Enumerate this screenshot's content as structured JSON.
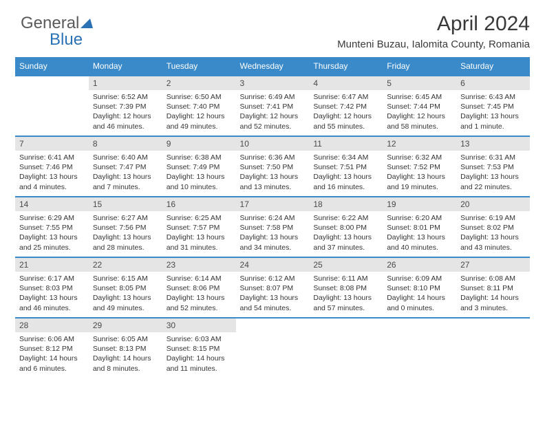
{
  "brand": {
    "part1": "General",
    "part2": "Blue"
  },
  "title": "April 2024",
  "subtitle": "Munteni Buzau, Ialomita County, Romania",
  "colors": {
    "header_bg": "#3a8ac9",
    "header_text": "#ffffff",
    "daynum_bg": "#e5e5e5",
    "accent": "#2a72b5",
    "text": "#333333"
  },
  "weekdays": [
    "Sunday",
    "Monday",
    "Tuesday",
    "Wednesday",
    "Thursday",
    "Friday",
    "Saturday"
  ],
  "weeks": [
    [
      {
        "n": "",
        "lines": [
          "",
          "",
          ""
        ]
      },
      {
        "n": "1",
        "lines": [
          "Sunrise: 6:52 AM",
          "Sunset: 7:39 PM",
          "Daylight: 12 hours and 46 minutes."
        ]
      },
      {
        "n": "2",
        "lines": [
          "Sunrise: 6:50 AM",
          "Sunset: 7:40 PM",
          "Daylight: 12 hours and 49 minutes."
        ]
      },
      {
        "n": "3",
        "lines": [
          "Sunrise: 6:49 AM",
          "Sunset: 7:41 PM",
          "Daylight: 12 hours and 52 minutes."
        ]
      },
      {
        "n": "4",
        "lines": [
          "Sunrise: 6:47 AM",
          "Sunset: 7:42 PM",
          "Daylight: 12 hours and 55 minutes."
        ]
      },
      {
        "n": "5",
        "lines": [
          "Sunrise: 6:45 AM",
          "Sunset: 7:44 PM",
          "Daylight: 12 hours and 58 minutes."
        ]
      },
      {
        "n": "6",
        "lines": [
          "Sunrise: 6:43 AM",
          "Sunset: 7:45 PM",
          "Daylight: 13 hours and 1 minute."
        ]
      }
    ],
    [
      {
        "n": "7",
        "lines": [
          "Sunrise: 6:41 AM",
          "Sunset: 7:46 PM",
          "Daylight: 13 hours and 4 minutes."
        ]
      },
      {
        "n": "8",
        "lines": [
          "Sunrise: 6:40 AM",
          "Sunset: 7:47 PM",
          "Daylight: 13 hours and 7 minutes."
        ]
      },
      {
        "n": "9",
        "lines": [
          "Sunrise: 6:38 AM",
          "Sunset: 7:49 PM",
          "Daylight: 13 hours and 10 minutes."
        ]
      },
      {
        "n": "10",
        "lines": [
          "Sunrise: 6:36 AM",
          "Sunset: 7:50 PM",
          "Daylight: 13 hours and 13 minutes."
        ]
      },
      {
        "n": "11",
        "lines": [
          "Sunrise: 6:34 AM",
          "Sunset: 7:51 PM",
          "Daylight: 13 hours and 16 minutes."
        ]
      },
      {
        "n": "12",
        "lines": [
          "Sunrise: 6:32 AM",
          "Sunset: 7:52 PM",
          "Daylight: 13 hours and 19 minutes."
        ]
      },
      {
        "n": "13",
        "lines": [
          "Sunrise: 6:31 AM",
          "Sunset: 7:53 PM",
          "Daylight: 13 hours and 22 minutes."
        ]
      }
    ],
    [
      {
        "n": "14",
        "lines": [
          "Sunrise: 6:29 AM",
          "Sunset: 7:55 PM",
          "Daylight: 13 hours and 25 minutes."
        ]
      },
      {
        "n": "15",
        "lines": [
          "Sunrise: 6:27 AM",
          "Sunset: 7:56 PM",
          "Daylight: 13 hours and 28 minutes."
        ]
      },
      {
        "n": "16",
        "lines": [
          "Sunrise: 6:25 AM",
          "Sunset: 7:57 PM",
          "Daylight: 13 hours and 31 minutes."
        ]
      },
      {
        "n": "17",
        "lines": [
          "Sunrise: 6:24 AM",
          "Sunset: 7:58 PM",
          "Daylight: 13 hours and 34 minutes."
        ]
      },
      {
        "n": "18",
        "lines": [
          "Sunrise: 6:22 AM",
          "Sunset: 8:00 PM",
          "Daylight: 13 hours and 37 minutes."
        ]
      },
      {
        "n": "19",
        "lines": [
          "Sunrise: 6:20 AM",
          "Sunset: 8:01 PM",
          "Daylight: 13 hours and 40 minutes."
        ]
      },
      {
        "n": "20",
        "lines": [
          "Sunrise: 6:19 AM",
          "Sunset: 8:02 PM",
          "Daylight: 13 hours and 43 minutes."
        ]
      }
    ],
    [
      {
        "n": "21",
        "lines": [
          "Sunrise: 6:17 AM",
          "Sunset: 8:03 PM",
          "Daylight: 13 hours and 46 minutes."
        ]
      },
      {
        "n": "22",
        "lines": [
          "Sunrise: 6:15 AM",
          "Sunset: 8:05 PM",
          "Daylight: 13 hours and 49 minutes."
        ]
      },
      {
        "n": "23",
        "lines": [
          "Sunrise: 6:14 AM",
          "Sunset: 8:06 PM",
          "Daylight: 13 hours and 52 minutes."
        ]
      },
      {
        "n": "24",
        "lines": [
          "Sunrise: 6:12 AM",
          "Sunset: 8:07 PM",
          "Daylight: 13 hours and 54 minutes."
        ]
      },
      {
        "n": "25",
        "lines": [
          "Sunrise: 6:11 AM",
          "Sunset: 8:08 PM",
          "Daylight: 13 hours and 57 minutes."
        ]
      },
      {
        "n": "26",
        "lines": [
          "Sunrise: 6:09 AM",
          "Sunset: 8:10 PM",
          "Daylight: 14 hours and 0 minutes."
        ]
      },
      {
        "n": "27",
        "lines": [
          "Sunrise: 6:08 AM",
          "Sunset: 8:11 PM",
          "Daylight: 14 hours and 3 minutes."
        ]
      }
    ],
    [
      {
        "n": "28",
        "lines": [
          "Sunrise: 6:06 AM",
          "Sunset: 8:12 PM",
          "Daylight: 14 hours and 6 minutes."
        ]
      },
      {
        "n": "29",
        "lines": [
          "Sunrise: 6:05 AM",
          "Sunset: 8:13 PM",
          "Daylight: 14 hours and 8 minutes."
        ]
      },
      {
        "n": "30",
        "lines": [
          "Sunrise: 6:03 AM",
          "Sunset: 8:15 PM",
          "Daylight: 14 hours and 11 minutes."
        ]
      },
      {
        "n": "",
        "lines": [
          "",
          "",
          ""
        ]
      },
      {
        "n": "",
        "lines": [
          "",
          "",
          ""
        ]
      },
      {
        "n": "",
        "lines": [
          "",
          "",
          ""
        ]
      },
      {
        "n": "",
        "lines": [
          "",
          "",
          ""
        ]
      }
    ]
  ]
}
